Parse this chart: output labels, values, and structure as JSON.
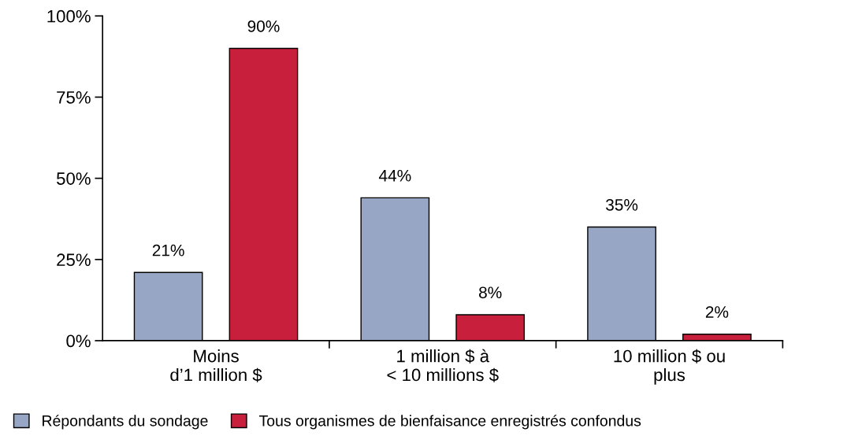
{
  "chart_data": {
    "type": "bar",
    "categories": [
      "Moins\nd’1 million $",
      "1 million $ à\n< 10 millions $",
      "10 million $ ou\nplus"
    ],
    "series": [
      {
        "name": "Répondants du sondage",
        "color": "#97a6c4",
        "values": [
          21,
          44,
          35
        ],
        "value_labels": [
          "21%",
          "44%",
          "35%"
        ]
      },
      {
        "name": "Tous organismes de bienfaisance enregistrés confondus",
        "color": "#c8203c",
        "values": [
          90,
          8,
          2
        ],
        "value_labels": [
          "90%",
          "8%",
          "2%"
        ]
      }
    ],
    "ylim": [
      0,
      100
    ],
    "yticks": [
      {
        "value": 0,
        "label": "0%"
      },
      {
        "value": 25,
        "label": "25%"
      },
      {
        "value": 50,
        "label": "50%"
      },
      {
        "value": 75,
        "label": "75%"
      },
      {
        "value": 100,
        "label": "100%"
      }
    ],
    "grid": false,
    "legend": "bottom"
  }
}
